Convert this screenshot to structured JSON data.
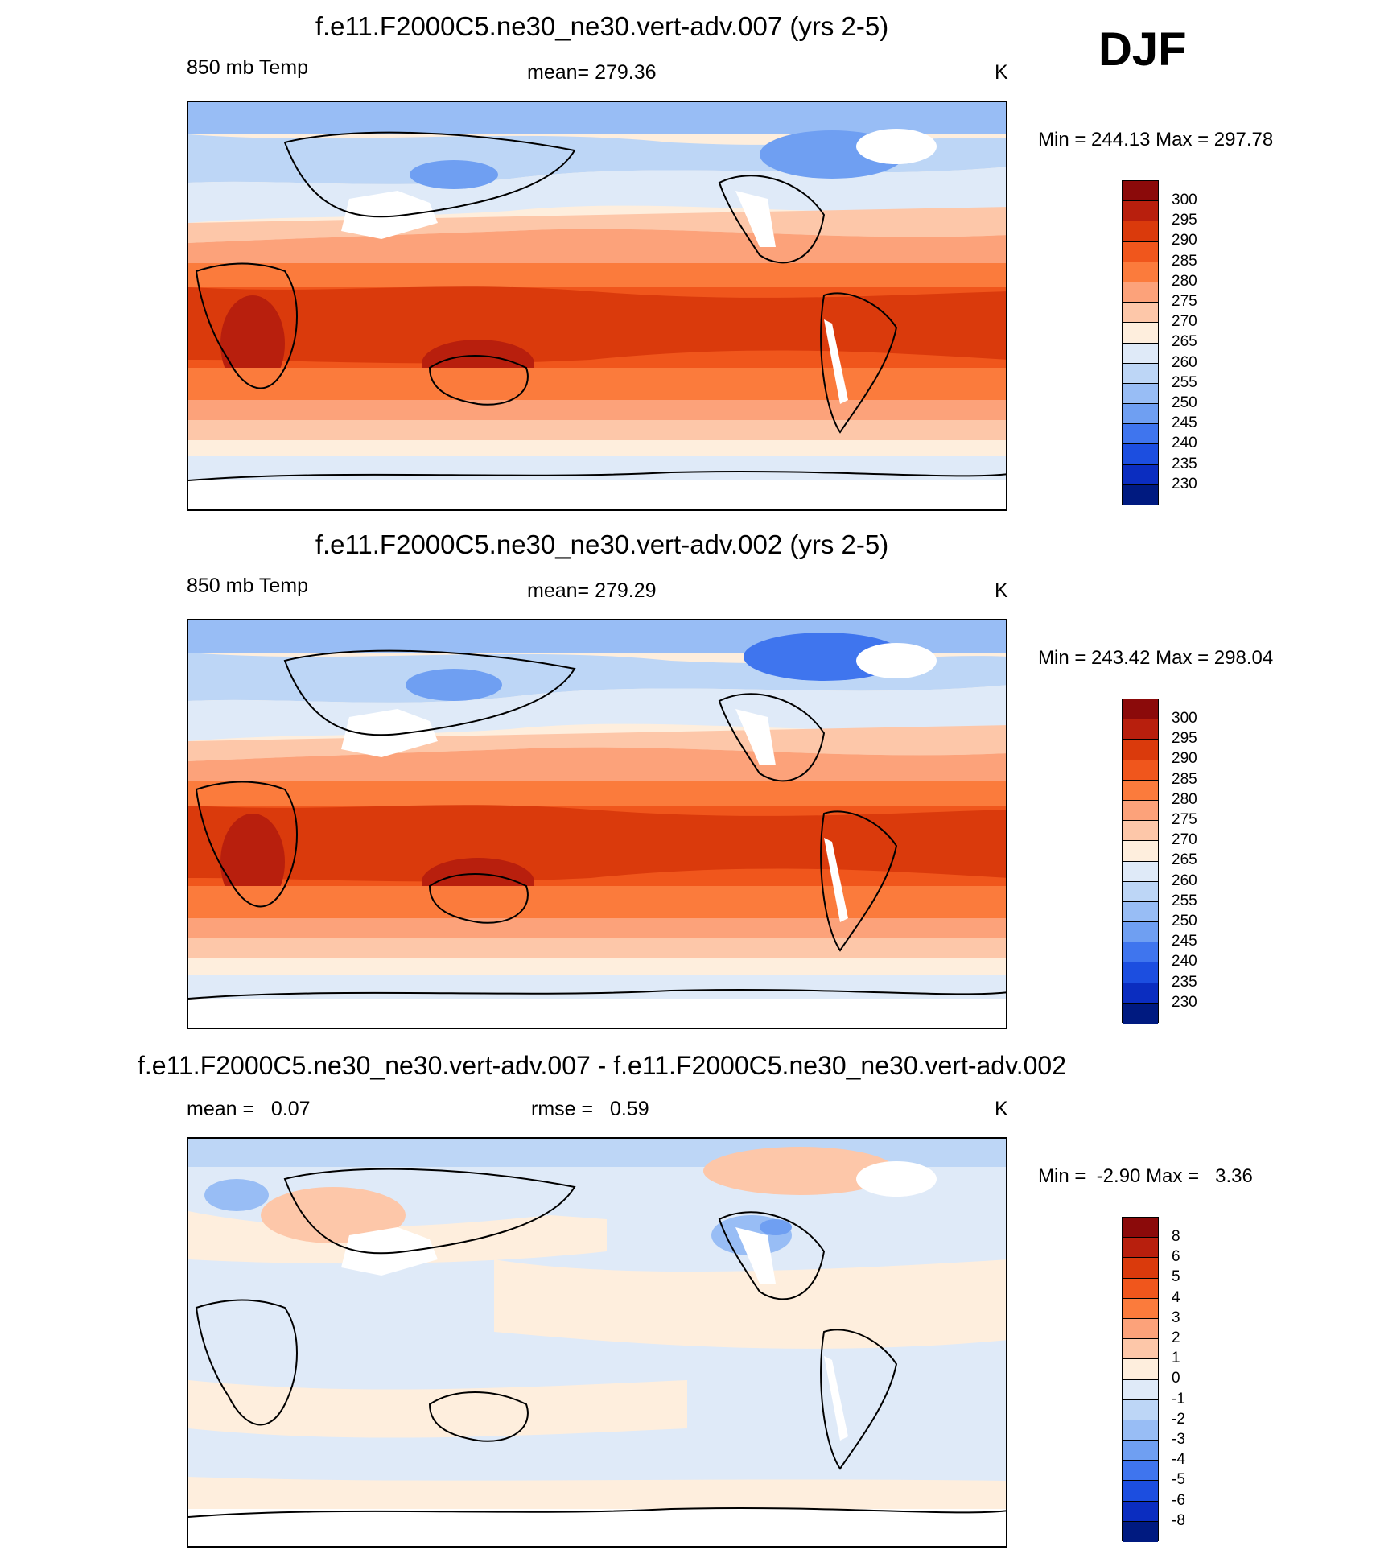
{
  "season": "DJF",
  "panels": [
    {
      "title": "f.e11.F2000C5.ne30_ne30.vert-adv.007 (yrs 2-5)",
      "left_label": "850 mb Temp",
      "center_label": "mean= 279.36",
      "units": "K",
      "minmax": "Min = 244.13 Max = 297.78",
      "colorbar_labels": [
        "300",
        "295",
        "290",
        "285",
        "280",
        "275",
        "270",
        "265",
        "260",
        "255",
        "250",
        "245",
        "240",
        "235",
        "230"
      ]
    },
    {
      "title": "f.e11.F2000C5.ne30_ne30.vert-adv.002 (yrs 2-5)",
      "left_label": "850 mb Temp",
      "center_label": "mean= 279.29",
      "units": "K",
      "minmax": "Min = 243.42 Max = 298.04",
      "colorbar_labels": [
        "300",
        "295",
        "290",
        "285",
        "280",
        "275",
        "270",
        "265",
        "260",
        "255",
        "250",
        "245",
        "240",
        "235",
        "230"
      ]
    },
    {
      "title": "f.e11.F2000C5.ne30_ne30.vert-adv.007 - f.e11.F2000C5.ne30_ne30.vert-adv.002",
      "left_label": "mean =   0.07",
      "center_label": "rmse =   0.59",
      "units": "K",
      "minmax": "Min =  -2.90 Max =   3.36",
      "colorbar_labels": [
        "8",
        "6",
        "5",
        "4",
        "3",
        "2",
        "1",
        "0",
        "-1",
        "-2",
        "-3",
        "-4",
        "-5",
        "-6",
        "-8"
      ]
    }
  ],
  "colors": {
    "scale": [
      "#8b0a0a",
      "#b81f0d",
      "#da3a0c",
      "#f0561c",
      "#fb7b3c",
      "#fca27a",
      "#fdc7a9",
      "#feeedd",
      "#dfeaf8",
      "#bdd6f6",
      "#98bdf5",
      "#6f9ff2",
      "#3f75ee",
      "#1c4ee0",
      "#0b2dc0",
      "#001a80"
    ]
  }
}
